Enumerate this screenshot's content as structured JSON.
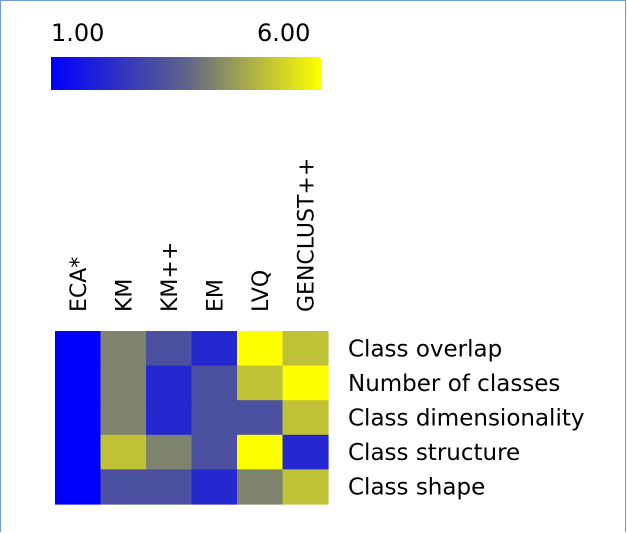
{
  "colorscale": {
    "min_label": "1.00",
    "max_label": "6.00",
    "min": 1,
    "max": 6,
    "colors": [
      "#0000ff",
      "#5e6488",
      "#ffff00"
    ]
  },
  "chart_data": {
    "type": "heatmap",
    "columns": [
      "ECA*",
      "KM",
      "KM++",
      "EM",
      "LVQ",
      "GENCLUST++"
    ],
    "rows": [
      "Class overlap",
      "Number of classes",
      "Class dimensionality",
      "Class structure",
      "Class shape"
    ],
    "values": [
      [
        1,
        4,
        3,
        2,
        6,
        5
      ],
      [
        1,
        4,
        2,
        3,
        5,
        6
      ],
      [
        1,
        4,
        2,
        3,
        3,
        5
      ],
      [
        1,
        5,
        4,
        3,
        6,
        2
      ],
      [
        1,
        3,
        3,
        2,
        4,
        5
      ]
    ],
    "color_min": 1,
    "color_max": 6
  }
}
